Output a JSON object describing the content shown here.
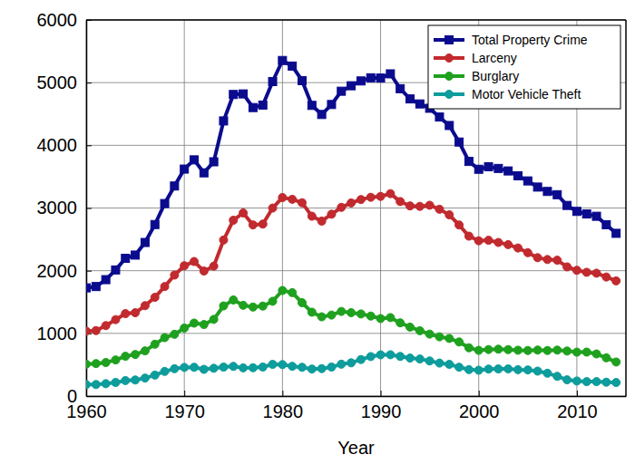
{
  "chart_data": {
    "type": "line",
    "x_label": "Year",
    "x": [
      1960,
      1961,
      1962,
      1963,
      1964,
      1965,
      1966,
      1967,
      1968,
      1969,
      1970,
      1971,
      1972,
      1973,
      1974,
      1975,
      1976,
      1977,
      1978,
      1979,
      1980,
      1981,
      1982,
      1983,
      1984,
      1985,
      1986,
      1987,
      1988,
      1989,
      1990,
      1991,
      1992,
      1993,
      1994,
      1995,
      1996,
      1997,
      1998,
      1999,
      2000,
      2001,
      2002,
      2003,
      2004,
      2005,
      2006,
      2007,
      2008,
      2009,
      2010,
      2011,
      2012,
      2013,
      2014
    ],
    "series": [
      {
        "name": "Total Property Crime",
        "color": "#0b0b8e",
        "marker": "square",
        "values": [
          1726,
          1747,
          1857,
          2012,
          2197,
          2249,
          2450,
          2736,
          3071,
          3351,
          3621,
          3768,
          3561,
          3737,
          4389,
          4811,
          4820,
          4602,
          4642,
          5017,
          5353,
          5264,
          5032,
          4637,
          4492,
          4651,
          4863,
          4950,
          5027,
          5077,
          5073,
          5140,
          4903,
          4740,
          4660,
          4591,
          4451,
          4316,
          4052,
          3743,
          3618,
          3658,
          3631,
          3591,
          3514,
          3432,
          3334,
          3264,
          3212,
          3041,
          2946,
          2905,
          2868,
          2733,
          2596
        ]
      },
      {
        "name": "Larceny",
        "color": "#c12a2e",
        "marker": "circle",
        "values": [
          1035,
          1045,
          1124,
          1219,
          1315,
          1329,
          1442,
          1575,
          1747,
          1930,
          2079,
          2146,
          1994,
          2072,
          2489,
          2805,
          2921,
          2730,
          2744,
          2999,
          3167,
          3139,
          3084,
          2869,
          2791,
          2901,
          3010,
          3081,
          3135,
          3171,
          3185,
          3229,
          3103,
          3033,
          3026,
          3044,
          2980,
          2891,
          2729,
          2551,
          2477,
          2485,
          2450,
          2416,
          2362,
          2287,
          2207,
          2178,
          2167,
          2061,
          2006,
          1974,
          1960,
          1899,
          1837
        ]
      },
      {
        "name": "Burglary",
        "color": "#1fa11f",
        "marker": "circle",
        "values": [
          509,
          518,
          535,
          576,
          635,
          663,
          721,
          826,
          932,
          985,
          1085,
          1164,
          1141,
          1223,
          1438,
          1533,
          1448,
          1420,
          1435,
          1512,
          1684,
          1650,
          1489,
          1338,
          1264,
          1292,
          1350,
          1330,
          1310,
          1276,
          1236,
          1252,
          1168,
          1100,
          1042,
          988,
          945,
          919,
          863,
          770,
          729,
          742,
          748,
          741,
          731,
          727,
          734,
          727,
          733,
          718,
          700,
          701,
          672,
          610,
          543
        ]
      },
      {
        "name": "Motor Vehicle Theft",
        "color": "#0e9c9c",
        "marker": "circle",
        "values": [
          183,
          184,
          197,
          217,
          247,
          256,
          287,
          334,
          393,
          436,
          457,
          459,
          426,
          443,
          462,
          474,
          450,
          452,
          463,
          506,
          502,
          475,
          459,
          431,
          438,
          463,
          508,
          530,
          583,
          630,
          658,
          659,
          632,
          606,
          591,
          560,
          526,
          506,
          460,
          422,
          412,
          431,
          433,
          434,
          421,
          417,
          398,
          364,
          315,
          259,
          240,
          230,
          230,
          221,
          216
        ]
      }
    ],
    "xlim": [
      1960,
      2015
    ],
    "xticks": [
      1960,
      1970,
      1980,
      1990,
      2000,
      2010
    ],
    "ylim": [
      0,
      6000
    ],
    "yticks": [
      0,
      1000,
      2000,
      3000,
      4000,
      5000,
      6000
    ],
    "grid": true,
    "legend": "upper right"
  }
}
